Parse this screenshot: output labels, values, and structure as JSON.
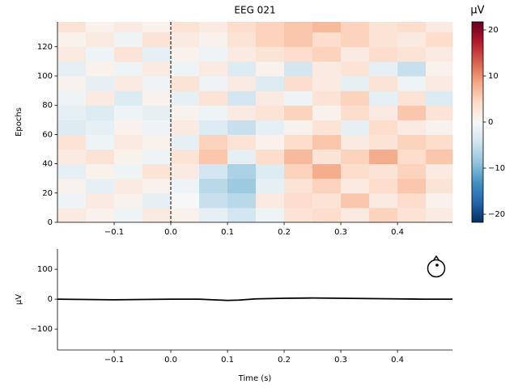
{
  "chart_data": [
    {
      "type": "heatmap",
      "title": "EEG 021",
      "ylabel": "Epochs",
      "xbins": [
        -0.2,
        -0.15,
        -0.1,
        -0.05,
        0,
        0.05,
        0.1,
        0.15,
        0.2,
        0.25,
        0.3,
        0.35,
        0.4,
        0.45,
        0.497
      ],
      "ybins": [
        0,
        10,
        20,
        30,
        40,
        50,
        60,
        70,
        80,
        90,
        100,
        110,
        120,
        130,
        137
      ],
      "values": [
        [
          2,
          1,
          -1,
          2,
          1,
          -2,
          -4,
          -1,
          3,
          4,
          2,
          5,
          3,
          2
        ],
        [
          -1,
          2,
          1,
          -2,
          0,
          -5,
          -6,
          2,
          4,
          3,
          6,
          2,
          4,
          1
        ],
        [
          1,
          -2,
          2,
          1,
          -1,
          -6,
          -8,
          -2,
          3,
          5,
          2,
          4,
          6,
          3
        ],
        [
          -2,
          1,
          -1,
          3,
          2,
          -4,
          -7,
          -3,
          5,
          8,
          4,
          3,
          5,
          2
        ],
        [
          2,
          3,
          1,
          -1,
          3,
          6,
          -2,
          4,
          7,
          3,
          5,
          8,
          4,
          6
        ],
        [
          3,
          -1,
          2,
          1,
          -2,
          5,
          3,
          1,
          4,
          6,
          2,
          3,
          5,
          4
        ],
        [
          -3,
          -2,
          1,
          -1,
          2,
          -3,
          -5,
          -2,
          1,
          3,
          -2,
          4,
          2,
          1
        ],
        [
          -2,
          -3,
          -1,
          -2,
          1,
          -1,
          2,
          3,
          5,
          1,
          4,
          2,
          6,
          3
        ],
        [
          -1,
          2,
          -3,
          1,
          -2,
          3,
          -4,
          2,
          -1,
          3,
          5,
          -2,
          3,
          -3
        ],
        [
          1,
          -2,
          2,
          -1,
          3,
          -1,
          2,
          -3,
          4,
          2,
          -2,
          3,
          -1,
          2
        ],
        [
          -2,
          1,
          -1,
          2,
          -1,
          2,
          -3,
          1,
          -4,
          2,
          3,
          -2,
          -5,
          1
        ],
        [
          2,
          -1,
          3,
          -2,
          1,
          -1,
          2,
          3,
          4,
          5,
          2,
          4,
          3,
          2
        ],
        [
          1,
          2,
          -1,
          3,
          2,
          1,
          3,
          5,
          6,
          4,
          5,
          3,
          2,
          4
        ],
        [
          3,
          1,
          2,
          1,
          3,
          2,
          4,
          5,
          6,
          7,
          5,
          3,
          4,
          2
        ]
      ],
      "xlim": [
        -0.2,
        0.497
      ],
      "ylim": [
        0,
        137
      ],
      "xticks": [
        {
          "value": -0.1,
          "label": "−0.1"
        },
        {
          "value": 0,
          "label": "0.0"
        },
        0.1,
        0.2,
        0.3,
        0.4
      ],
      "yticks": [
        0,
        20,
        40,
        60,
        80,
        100,
        120
      ],
      "vline": 0,
      "colormap": [
        "#053061",
        "#2166ac",
        "#4393c3",
        "#92c5de",
        "#d1e5f0",
        "#f7f7f7",
        "#fddbc7",
        "#f4a582",
        "#d6604d",
        "#b2182b",
        "#67001f"
      ],
      "clim": [
        -21.75,
        21.75
      ],
      "colorbar_label": "µV",
      "colorbar_ticks": [
        {
          "value": -20,
          "label": "−20"
        },
        {
          "value": -10,
          "label": "−10"
        },
        0,
        10,
        20
      ]
    },
    {
      "type": "line",
      "xlabel": "Time (s)",
      "ylabel": "µV",
      "color": "#000000",
      "x": [
        -0.2,
        -0.15,
        -0.1,
        -0.05,
        0,
        0.05,
        0.1,
        0.12,
        0.15,
        0.2,
        0.25,
        0.3,
        0.35,
        0.4,
        0.45,
        0.497
      ],
      "values": [
        0,
        -1,
        -2,
        -1,
        0,
        0,
        -4,
        -3,
        1,
        3,
        4,
        3,
        2,
        1,
        0,
        0
      ],
      "xlim": [
        -0.2,
        0.497
      ],
      "ylim": [
        -170,
        168
      ],
      "xticks": [
        {
          "value": -0.1,
          "label": "−0.1"
        },
        {
          "value": 0,
          "label": "0.0"
        },
        0.1,
        0.2,
        0.3,
        0.4
      ],
      "yticks": [
        {
          "value": -100,
          "label": "−100"
        },
        0,
        100
      ]
    }
  ]
}
